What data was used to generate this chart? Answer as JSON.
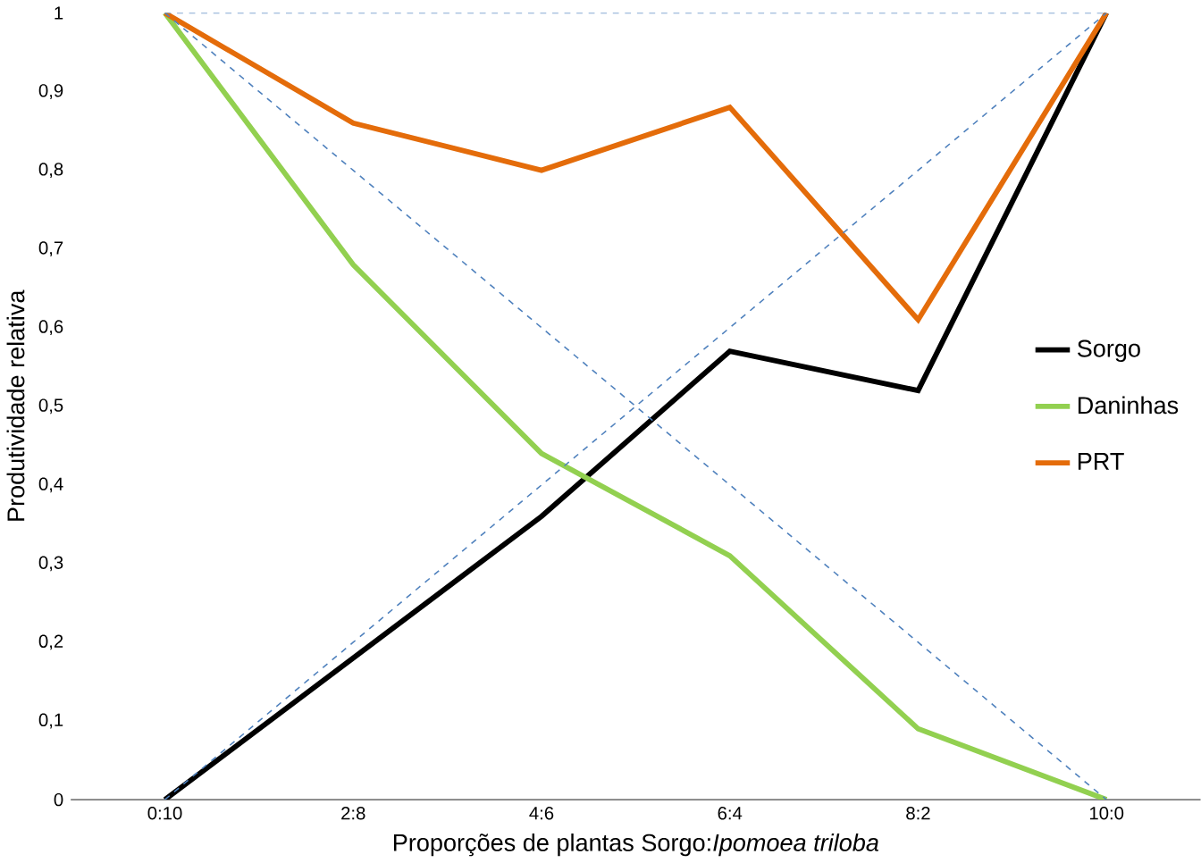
{
  "chart_data": {
    "type": "line",
    "xlabel": "Proporções de plantas Sorgo:*Ipomoea  triloba*",
    "ylabel": "Produtividade relativa",
    "categories": [
      "0:10",
      "2:8",
      "4:6",
      "6:4",
      "8:2",
      "10:0"
    ],
    "ylim": [
      0,
      1
    ],
    "yticks": [
      0,
      {
        "value": 0.1,
        "label": "0,1"
      },
      {
        "value": 0.2,
        "label": "0,2"
      },
      {
        "value": 0.3,
        "label": "0,3"
      },
      {
        "value": 0.4,
        "label": "0,4"
      },
      {
        "value": 0.5,
        "label": "0,5"
      },
      {
        "value": 0.6,
        "label": "0,6"
      },
      {
        "value": 0.7,
        "label": "0,7"
      },
      {
        "value": 0.8,
        "label": "0,8"
      },
      {
        "value": 0.9,
        "label": "0,9"
      },
      1
    ],
    "legend": "right",
    "grid": false,
    "series": [
      {
        "name": "Sorgo",
        "color": "#000000",
        "values": [
          0,
          0.18,
          0.36,
          0.57,
          0.52,
          1
        ]
      },
      {
        "name": "Daninhas",
        "color": "#92d050",
        "values": [
          1,
          0.68,
          0.44,
          0.31,
          0.09,
          0
        ]
      },
      {
        "name": "PRT",
        "color": "#e46c0a",
        "values": [
          1,
          0.86,
          0.8,
          0.88,
          0.61,
          1
        ]
      },
      {
        "color": "#4f81bd",
        "line_style": "dashed",
        "values": [
          1,
          0.8,
          0.6,
          0.4,
          0.2,
          0
        ]
      },
      {
        "color": "#4f81bd",
        "line_style": "dashed",
        "values": [
          0,
          0.2,
          0.4,
          0.6,
          0.8,
          1
        ]
      }
    ],
    "ref_lines": [
      {
        "axis": "y",
        "value": 1,
        "color": "#4f81bd",
        "line_style": "dashed"
      }
    ]
  }
}
